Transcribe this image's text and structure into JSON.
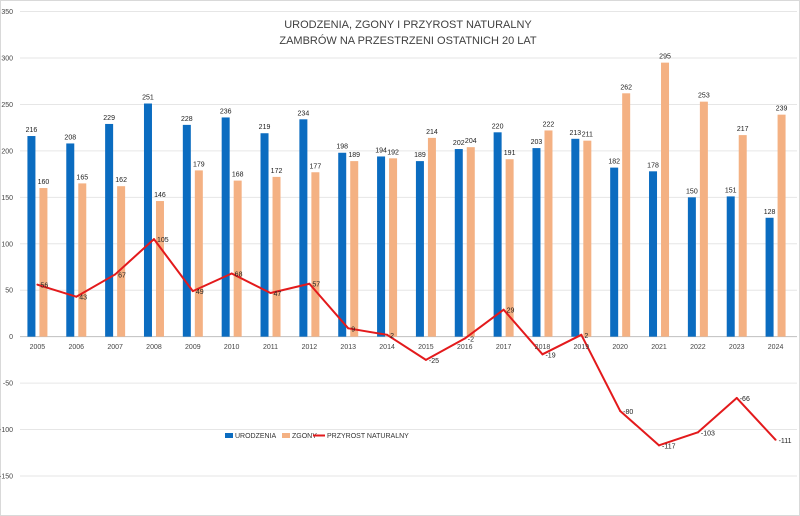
{
  "chart_data": {
    "type": "bar",
    "title_line1": "URODZENIA, ZGONY I PRZYROST NATURALNY",
    "title_line2": "ZAMBRÓW NA PRZESTRZENI OSTATNICH  20 LAT",
    "categories": [
      "2005",
      "2006",
      "2007",
      "2008",
      "2009",
      "2010",
      "2011",
      "2012",
      "2013",
      "2014",
      "2015",
      "2016",
      "2017",
      "2018",
      "2019",
      "2020",
      "2021",
      "2022",
      "2023",
      "2024"
    ],
    "series": [
      {
        "name": "URODZENIA",
        "kind": "bar",
        "color": "#0B6CC0",
        "values": [
          216,
          208,
          229,
          251,
          228,
          236,
          219,
          234,
          198,
          194,
          189,
          202,
          220,
          203,
          213,
          182,
          178,
          150,
          151,
          128
        ]
      },
      {
        "name": "ZGONY",
        "kind": "bar",
        "color": "#F4B183",
        "values": [
          160,
          165,
          162,
          146,
          179,
          168,
          172,
          177,
          189,
          192,
          214,
          204,
          191,
          222,
          211,
          262,
          295,
          253,
          217,
          239
        ]
      },
      {
        "name": "PRZYROST NATURALNY",
        "kind": "line",
        "color": "#E31A1C",
        "values": [
          56,
          43,
          67,
          105,
          49,
          68,
          47,
          57,
          9,
          2,
          -25,
          -2,
          29,
          -19,
          2,
          -80,
          -117,
          -103,
          -66,
          -111
        ]
      }
    ],
    "ylim": [
      -150,
      350
    ],
    "yticks": [
      -150,
      -100,
      -50,
      0,
      50,
      100,
      150,
      200,
      250,
      300,
      350
    ],
    "grid": true,
    "legend_position": "bottom-left-inside"
  }
}
